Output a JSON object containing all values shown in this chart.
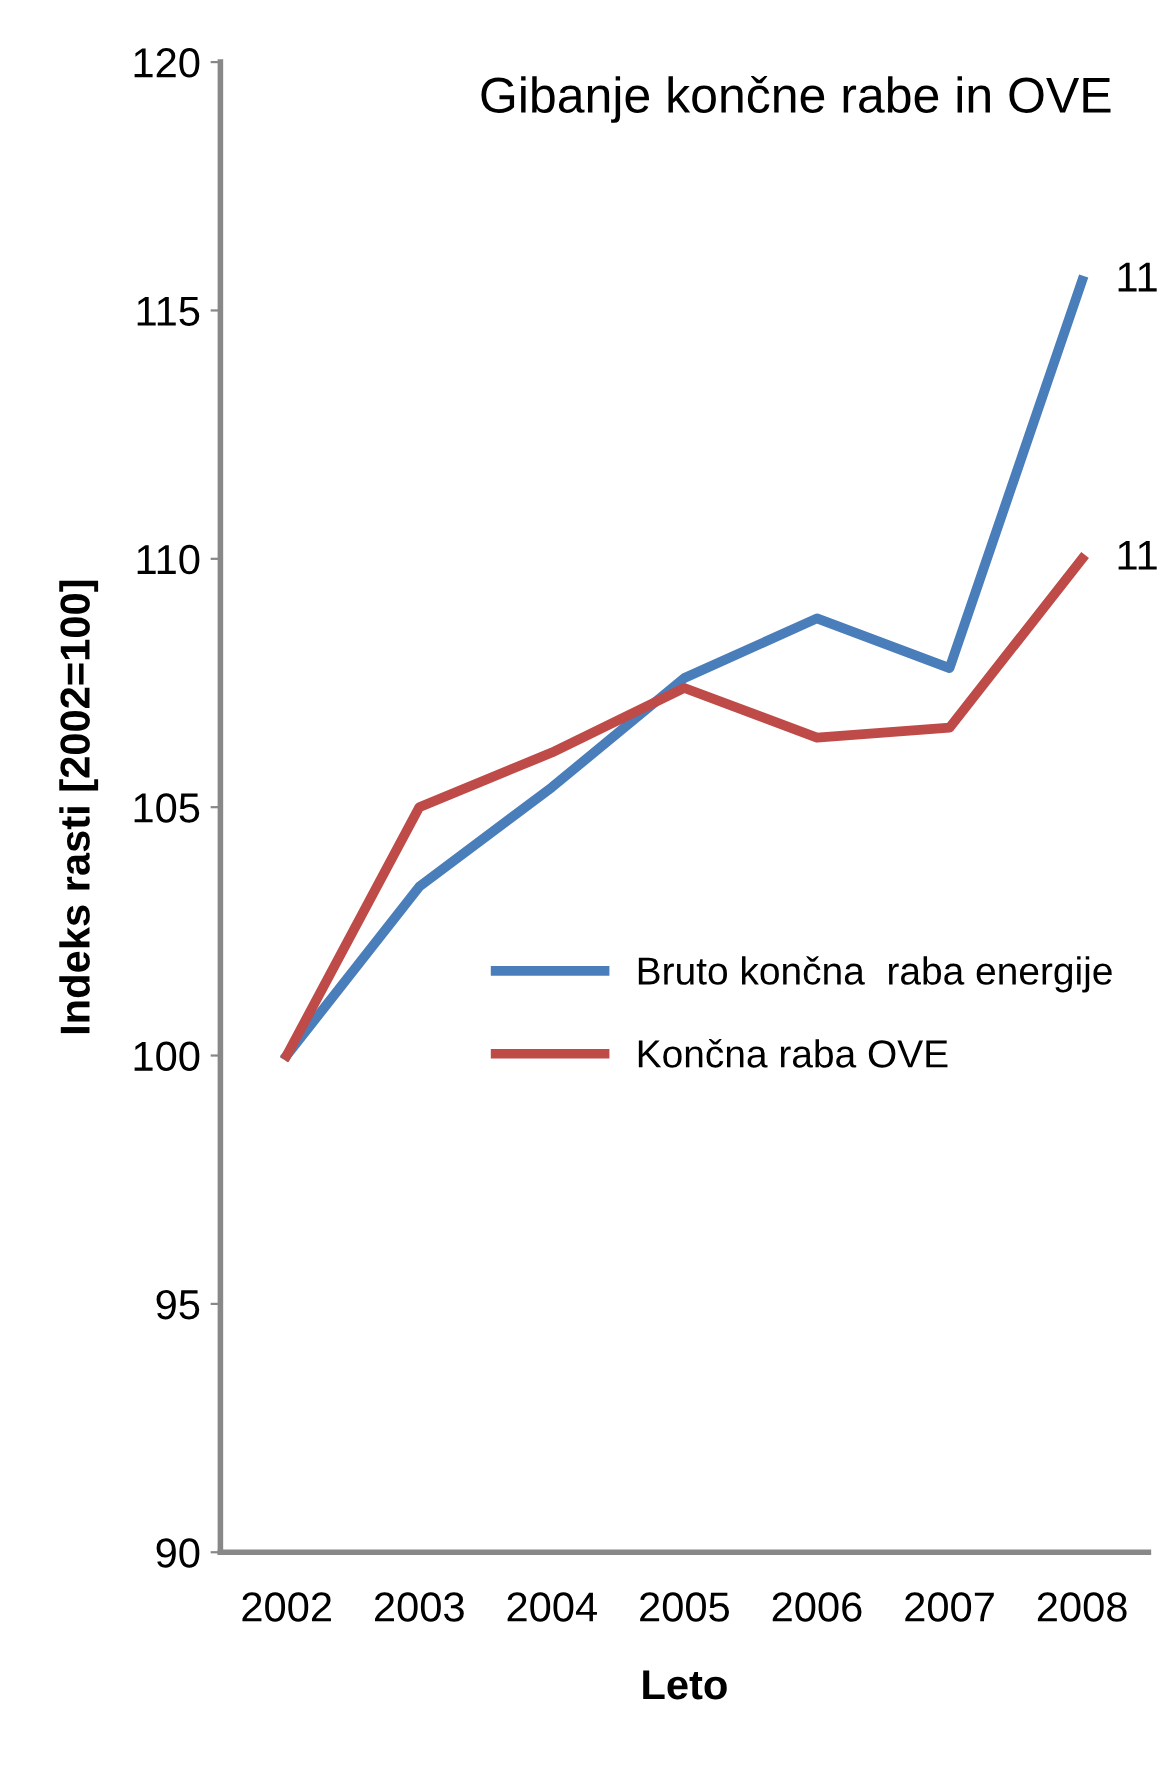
{
  "chart_data": {
    "type": "line",
    "title": "Gibanje končne rabe in OVE",
    "xlabel": "Leto",
    "ylabel": "Indeks rasti [2002=100]",
    "categories": [
      "2002",
      "2003",
      "2004",
      "2005",
      "2006",
      "2007",
      "2008"
    ],
    "series": [
      {
        "name": "Bruto končna  raba energije",
        "color": "#4a7ebb",
        "values": [
          100,
          103.4,
          105.4,
          107.6,
          108.8,
          107.8,
          115.6
        ]
      },
      {
        "name": "Končna raba OVE",
        "color": "#be4b48",
        "values": [
          100,
          105.0,
          106.1,
          107.4,
          106.4,
          106.6,
          110.0
        ]
      }
    ],
    "ylim": [
      90,
      120
    ],
    "yticks": [
      90,
      95,
      100,
      105,
      110,
      115,
      120
    ],
    "grid": false,
    "legend": "center right",
    "marker": "none",
    "line_style": "solid",
    "annotations": [
      {
        "text": "11",
        "x": "2008",
        "y": 115.6
      },
      {
        "text": "11",
        "x": "2008",
        "y": 110.0
      }
    ]
  }
}
